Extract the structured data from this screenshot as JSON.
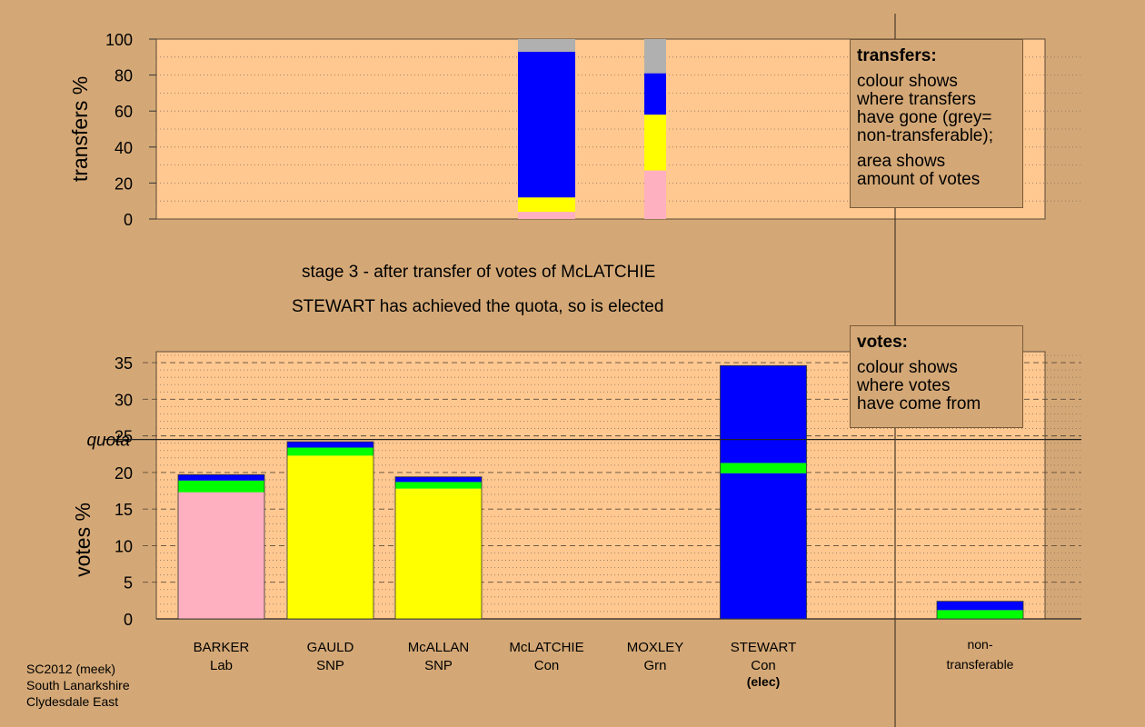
{
  "captions": {
    "stage": "stage 3 - after transfer of votes of McLATCHIE",
    "elected": "STEWART has achieved the quota, so is elected"
  },
  "source": {
    "line1": "SC2012 (meek)",
    "line2": "South Lanarkshire",
    "line3": "Clydesdale East"
  },
  "legend_transfers": {
    "title": "transfers:",
    "line1": "colour shows",
    "line2": "where transfers",
    "line3": "have gone (grey=",
    "line4": "non-transferable);",
    "line5": "area shows",
    "line6": "amount of votes"
  },
  "legend_votes": {
    "title": "votes:",
    "line1": "colour shows",
    "line2": "where votes",
    "line3": "have come from"
  },
  "colors": {
    "background": "#d4a876",
    "plot_area": "#ffc890",
    "Lab": "#ffb0c0",
    "SNP": "#ffff00",
    "Grn": "#00ff00",
    "Con": "#0000ff",
    "non_transferable": "#b0b0b0"
  },
  "chart_data": [
    {
      "type": "bar",
      "stacked": true,
      "ylabel": "transfers %",
      "ylim": [
        0,
        100
      ],
      "yticks": [
        0,
        20,
        40,
        60,
        80,
        100
      ],
      "grid": true,
      "bars": [
        {
          "candidate": "McLATCHIE",
          "relative_width": 1.0,
          "segments": [
            {
              "party": "Lab",
              "value": 4
            },
            {
              "party": "SNP",
              "value": 8
            },
            {
              "party": "Con",
              "value": 81
            },
            {
              "party": "non_transferable",
              "value": 7
            }
          ]
        },
        {
          "candidate": "MOXLEY",
          "relative_width": 0.38,
          "segments": [
            {
              "party": "Lab",
              "value": 27
            },
            {
              "party": "SNP",
              "value": 31
            },
            {
              "party": "Con",
              "value": 23
            },
            {
              "party": "non_transferable",
              "value": 19
            }
          ]
        }
      ]
    },
    {
      "type": "bar",
      "stacked": true,
      "ylabel": "votes %",
      "ylim": [
        0,
        36.5
      ],
      "yticks": [
        0,
        5,
        10,
        15,
        20,
        25,
        30,
        35
      ],
      "quota": 24.5,
      "quota_label": "quota",
      "grid": true,
      "candidates": [
        {
          "name": "BARKER",
          "party": "Lab",
          "note": "",
          "segments": [
            {
              "party": "Lab",
              "value": 17.3
            },
            {
              "party": "Grn",
              "value": 1.6
            },
            {
              "party": "Con",
              "value": 0.8
            }
          ]
        },
        {
          "name": "GAULD",
          "party": "SNP",
          "note": "",
          "segments": [
            {
              "party": "SNP",
              "value": 22.3
            },
            {
              "party": "Grn",
              "value": 1.1
            },
            {
              "party": "Con",
              "value": 0.8
            }
          ]
        },
        {
          "name": "McALLAN",
          "party": "SNP",
          "note": "",
          "segments": [
            {
              "party": "SNP",
              "value": 17.8
            },
            {
              "party": "Grn",
              "value": 0.9
            },
            {
              "party": "Con",
              "value": 0.7
            }
          ]
        },
        {
          "name": "McLATCHIE",
          "party": "Con",
          "note": "",
          "segments": []
        },
        {
          "name": "MOXLEY",
          "party": "Grn",
          "note": "",
          "segments": []
        },
        {
          "name": "STEWART",
          "party": "Con",
          "note": "(elec)",
          "segments": [
            {
              "party": "Con",
              "value": 19.9
            },
            {
              "party": "Grn",
              "value": 1.4
            },
            {
              "party": "Con",
              "value": 13.3
            }
          ]
        }
      ],
      "nontransferable": {
        "label1": "non-",
        "label2": "transferable",
        "segments": [
          {
            "party": "Grn",
            "value": 1.2
          },
          {
            "party": "Con",
            "value": 1.2
          }
        ]
      }
    }
  ]
}
